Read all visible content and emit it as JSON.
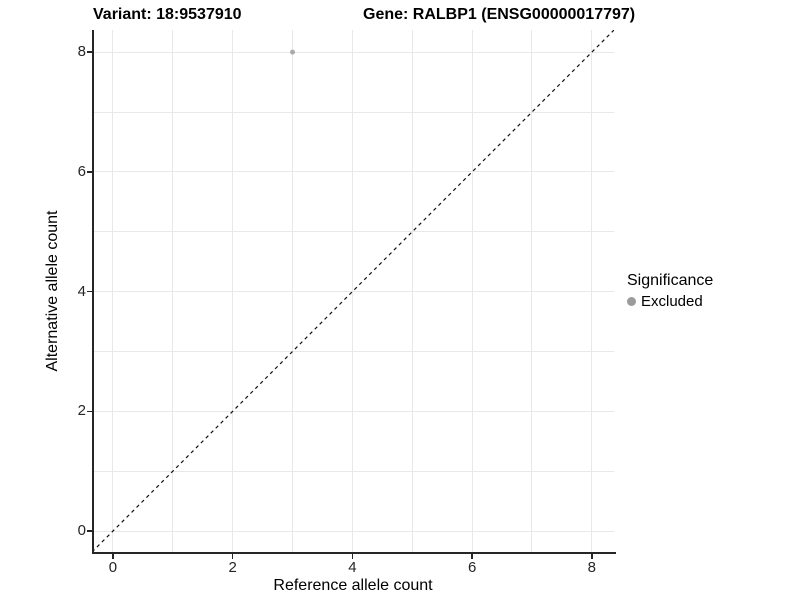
{
  "header": {
    "variant_title": "Variant: 18:9537910",
    "gene_title": "Gene: RALBP1 (ENSG00000017797)"
  },
  "legend": {
    "title": "Significance",
    "items": [
      {
        "label": "Excluded",
        "color": "#9b9b9b"
      }
    ]
  },
  "chart_data": {
    "type": "scatter",
    "title": "Variant: 18:9537910    Gene: RALBP1 (ENSG00000017797)",
    "xlabel": "Reference allele count",
    "ylabel": "Alternative allele count",
    "xlim": [
      -0.35,
      8.37
    ],
    "ylim": [
      -0.35,
      8.37
    ],
    "x_ticks": [
      0,
      2,
      4,
      6,
      8
    ],
    "y_ticks": [
      0,
      2,
      4,
      6,
      8
    ],
    "gridlines": {
      "every": 1,
      "from": 0,
      "to": 8,
      "color": "#e8e8e8"
    },
    "points": [
      {
        "x": 3,
        "y": 8,
        "series": "Excluded",
        "color": "#ababab",
        "radius": 2.5
      }
    ],
    "reference_line": {
      "type": "identity",
      "style": "dashed",
      "color": "#111111"
    },
    "legend_position": "right",
    "aspect": "equal",
    "colors": {
      "axis": "#262626",
      "tick_text": "#262626",
      "grid": "#e8e8e8"
    }
  }
}
